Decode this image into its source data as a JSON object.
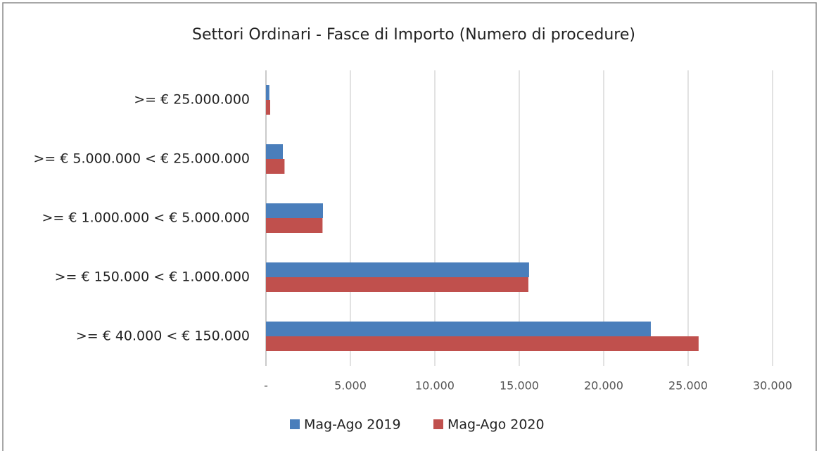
{
  "chart_data": {
    "type": "hbar",
    "title": "Settori Ordinari - Fasce di Importo (Numero di procedure)",
    "categories": [
      ">= € 25.000.000",
      ">= € 5.000.000 < € 25.000.000",
      ">= € 1.000.000 < € 5.000.000",
      ">= € 150.000 < € 1.000.000",
      ">= € 40.000 < € 150.000"
    ],
    "series": [
      {
        "name": "Mag-Ago 2019",
        "color": "#4a7ebb",
        "values": [
          200,
          1000,
          3375,
          15580,
          22790
        ]
      },
      {
        "name": "Mag-Ago 2020",
        "color": "#c0504d",
        "values": [
          250,
          1100,
          3350,
          15540,
          25620
        ]
      }
    ],
    "xlim": [
      0,
      30000
    ],
    "xticks": [
      {
        "value": 0,
        "label": "-"
      },
      {
        "value": 5000,
        "label": "5.000"
      },
      {
        "value": 10000,
        "label": "10.000"
      },
      {
        "value": 15000,
        "label": "15.000"
      },
      {
        "value": 20000,
        "label": "20.000"
      },
      {
        "value": 25000,
        "label": "25.000"
      },
      {
        "value": 30000,
        "label": "30.000"
      }
    ],
    "grid": true,
    "legend": "bottom"
  }
}
